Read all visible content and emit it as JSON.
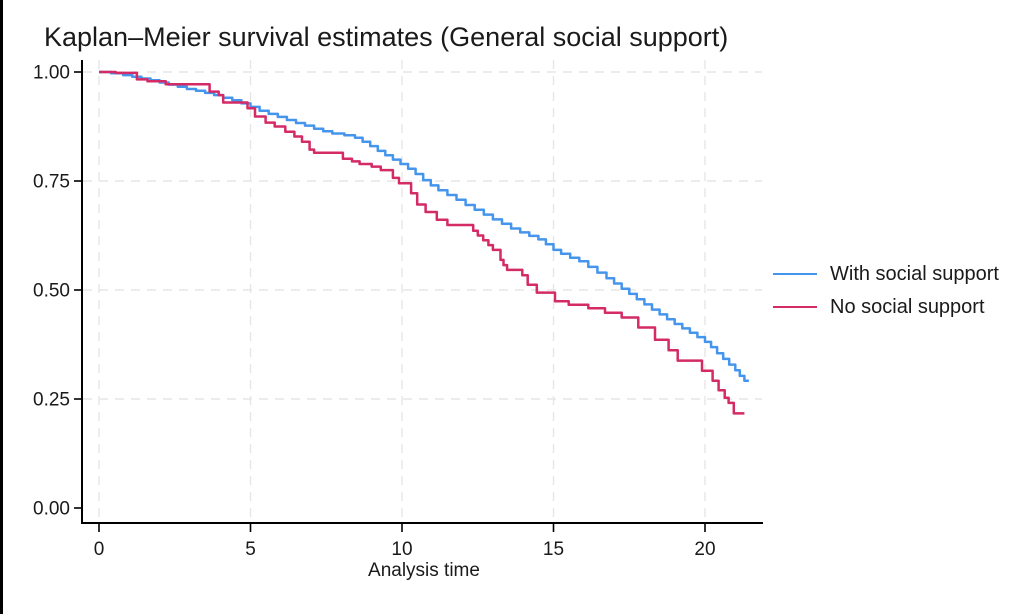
{
  "title": "Kaplan–Meier survival estimates (General social support)",
  "legend": {
    "items": [
      {
        "label": "With social support",
        "color": "#4695EC"
      },
      {
        "label": "No social support",
        "color": "#D42A66"
      }
    ]
  },
  "chart_data": {
    "type": "line",
    "subtype": "kaplan-meier-step",
    "title": "Kaplan–Meier survival estimates (General social support)",
    "xlabel": "Analysis time",
    "ylabel": "",
    "xlim": [
      0,
      22
    ],
    "ylim": [
      0.0,
      1.0
    ],
    "grid": "dashed-light-gray",
    "legend_position": "right-outside",
    "x_axis": {
      "ticks": [
        0,
        5,
        10,
        15,
        20
      ],
      "tick_labels": [
        "0",
        "5",
        "10",
        "15",
        "20"
      ]
    },
    "y_axis": {
      "ticks": [
        1.0,
        0.75,
        0.5,
        0.25,
        0.0
      ],
      "tick_labels": [
        "1.00",
        "0.75",
        "0.50",
        "0.25",
        "0.00"
      ]
    },
    "colors": {
      "grid": "#E6E6E6",
      "axis": "#000000",
      "background": "#FFFFFF"
    },
    "series": [
      {
        "name": "With social support",
        "color": "#4695EC",
        "end_t": 21.45,
        "points": [
          [
            0,
            1.0
          ],
          [
            0.4,
            0.997
          ],
          [
            0.8,
            0.993
          ],
          [
            1.1,
            0.989
          ],
          [
            1.4,
            0.985
          ],
          [
            1.7,
            0.981
          ],
          [
            2.0,
            0.976
          ],
          [
            2.3,
            0.971
          ],
          [
            2.6,
            0.966
          ],
          [
            2.9,
            0.961
          ],
          [
            3.2,
            0.957
          ],
          [
            3.5,
            0.952
          ],
          [
            3.8,
            0.947
          ],
          [
            4.1,
            0.941
          ],
          [
            4.4,
            0.935
          ],
          [
            4.7,
            0.928
          ],
          [
            5.0,
            0.92
          ],
          [
            5.3,
            0.911
          ],
          [
            5.6,
            0.904
          ],
          [
            5.9,
            0.897
          ],
          [
            6.2,
            0.89
          ],
          [
            6.5,
            0.883
          ],
          [
            6.8,
            0.877
          ],
          [
            7.1,
            0.87
          ],
          [
            7.4,
            0.864
          ],
          [
            7.7,
            0.859
          ],
          [
            8.1,
            0.855
          ],
          [
            8.45,
            0.849
          ],
          [
            8.7,
            0.84
          ],
          [
            8.95,
            0.83
          ],
          [
            9.2,
            0.819
          ],
          [
            9.45,
            0.809
          ],
          [
            9.7,
            0.799
          ],
          [
            9.95,
            0.789
          ],
          [
            10.2,
            0.778
          ],
          [
            10.45,
            0.766
          ],
          [
            10.7,
            0.752
          ],
          [
            10.95,
            0.74
          ],
          [
            11.2,
            0.729
          ],
          [
            11.5,
            0.718
          ],
          [
            11.8,
            0.707
          ],
          [
            12.1,
            0.695
          ],
          [
            12.4,
            0.684
          ],
          [
            12.7,
            0.673
          ],
          [
            13.0,
            0.662
          ],
          [
            13.3,
            0.652
          ],
          [
            13.6,
            0.641
          ],
          [
            13.9,
            0.632
          ],
          [
            14.2,
            0.624
          ],
          [
            14.5,
            0.616
          ],
          [
            14.75,
            0.605
          ],
          [
            15.0,
            0.592
          ],
          [
            15.25,
            0.583
          ],
          [
            15.55,
            0.574
          ],
          [
            15.85,
            0.566
          ],
          [
            16.15,
            0.553
          ],
          [
            16.45,
            0.54
          ],
          [
            16.75,
            0.527
          ],
          [
            17.0,
            0.515
          ],
          [
            17.25,
            0.503
          ],
          [
            17.5,
            0.491
          ],
          [
            17.75,
            0.479
          ],
          [
            18.0,
            0.467
          ],
          [
            18.25,
            0.455
          ],
          [
            18.5,
            0.444
          ],
          [
            18.75,
            0.433
          ],
          [
            19.0,
            0.422
          ],
          [
            19.25,
            0.412
          ],
          [
            19.5,
            0.402
          ],
          [
            19.75,
            0.392
          ],
          [
            20.0,
            0.381
          ],
          [
            20.2,
            0.369
          ],
          [
            20.4,
            0.355
          ],
          [
            20.6,
            0.342
          ],
          [
            20.8,
            0.329
          ],
          [
            21.0,
            0.316
          ],
          [
            21.15,
            0.303
          ],
          [
            21.3,
            0.292
          ]
        ]
      },
      {
        "name": "No social support",
        "color": "#D42A66",
        "end_t": 21.3,
        "points": [
          [
            0,
            1.0
          ],
          [
            0.55,
            0.998
          ],
          [
            1.25,
            0.983
          ],
          [
            1.6,
            0.979
          ],
          [
            2.2,
            0.972
          ],
          [
            3.65,
            0.955
          ],
          [
            3.95,
            0.947
          ],
          [
            4.1,
            0.93
          ],
          [
            4.9,
            0.917
          ],
          [
            5.15,
            0.898
          ],
          [
            5.5,
            0.884
          ],
          [
            5.8,
            0.875
          ],
          [
            6.15,
            0.863
          ],
          [
            6.45,
            0.852
          ],
          [
            6.7,
            0.84
          ],
          [
            6.95,
            0.822
          ],
          [
            7.1,
            0.815
          ],
          [
            8.05,
            0.801
          ],
          [
            8.35,
            0.795
          ],
          [
            8.6,
            0.789
          ],
          [
            9.0,
            0.783
          ],
          [
            9.3,
            0.775
          ],
          [
            9.7,
            0.757
          ],
          [
            9.9,
            0.745
          ],
          [
            10.3,
            0.722
          ],
          [
            10.5,
            0.696
          ],
          [
            10.78,
            0.679
          ],
          [
            11.15,
            0.661
          ],
          [
            11.5,
            0.649
          ],
          [
            12.35,
            0.636
          ],
          [
            12.5,
            0.625
          ],
          [
            12.68,
            0.614
          ],
          [
            12.85,
            0.603
          ],
          [
            13.0,
            0.592
          ],
          [
            13.25,
            0.569
          ],
          [
            13.35,
            0.557
          ],
          [
            13.47,
            0.546
          ],
          [
            13.97,
            0.534
          ],
          [
            14.15,
            0.512
          ],
          [
            14.45,
            0.494
          ],
          [
            15.05,
            0.474
          ],
          [
            15.5,
            0.466
          ],
          [
            16.15,
            0.458
          ],
          [
            16.7,
            0.448
          ],
          [
            17.25,
            0.437
          ],
          [
            17.8,
            0.414
          ],
          [
            18.35,
            0.386
          ],
          [
            18.8,
            0.362
          ],
          [
            19.1,
            0.338
          ],
          [
            19.9,
            0.315
          ],
          [
            20.25,
            0.292
          ],
          [
            20.45,
            0.27
          ],
          [
            20.65,
            0.253
          ],
          [
            20.78,
            0.241
          ],
          [
            20.95,
            0.217
          ]
        ]
      }
    ]
  }
}
